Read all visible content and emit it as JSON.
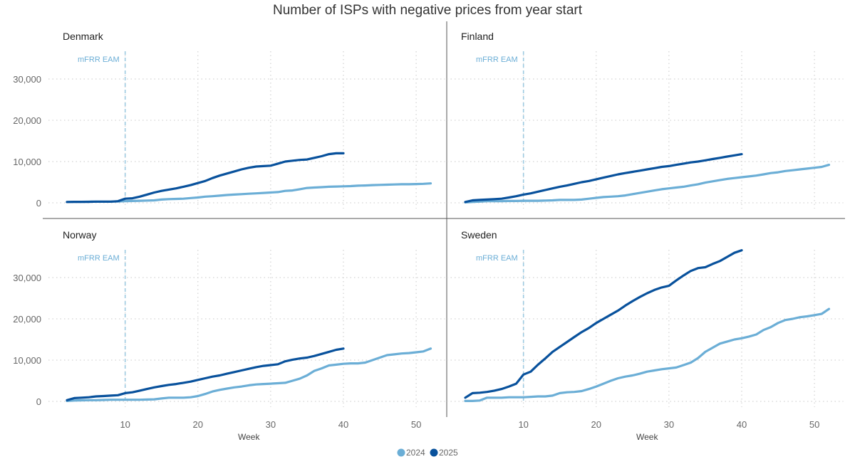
{
  "chart_data": {
    "type": "line",
    "title": "Number of ISPs with negative prices from year start",
    "xlabel": "Week",
    "ylabel": "",
    "xlim": [
      2,
      52
    ],
    "ylim": [
      0,
      37000
    ],
    "x_ticks": [
      10,
      20,
      30,
      40,
      50
    ],
    "y_ticks": [
      0,
      10000,
      20000,
      30000
    ],
    "y_tick_labels": [
      "0",
      "10,000",
      "20,000",
      "30,000"
    ],
    "grid": true,
    "legend": {
      "placement": "bottom-center",
      "entries": [
        {
          "name": "2024",
          "color": "#6BAED6"
        },
        {
          "name": "2025",
          "color": "#08519C"
        }
      ]
    },
    "annotation": {
      "label": "mFRR EAM",
      "x": 10,
      "style": "dashed-vertical-line"
    },
    "panels": [
      {
        "name": "Denmark",
        "series": [
          {
            "name": "2024",
            "x_start": 2,
            "values": [
              200,
              250,
              250,
              300,
              300,
              300,
              300,
              350,
              400,
              450,
              500,
              550,
              600,
              800,
              900,
              950,
              1000,
              1150,
              1300,
              1500,
              1600,
              1750,
              1900,
              2000,
              2100,
              2200,
              2300,
              2400,
              2500,
              2600,
              2900,
              3000,
              3300,
              3600,
              3700,
              3800,
              3900,
              3950,
              4000,
              4050,
              4150,
              4200,
              4300,
              4350,
              4400,
              4450,
              4500,
              4500,
              4550,
              4600,
              4700
            ]
          },
          {
            "name": "2025",
            "x_start": 2,
            "values": [
              200,
              250,
              250,
              250,
              300,
              300,
              300,
              400,
              1000,
              1100,
              1500,
              2000,
              2500,
              2900,
              3200,
              3500,
              3900,
              4300,
              4800,
              5300,
              6000,
              6600,
              7100,
              7600,
              8100,
              8500,
              8800,
              8900,
              9000,
              9500,
              10000,
              10200,
              10400,
              10500,
              10900,
              11300,
              11800,
              12000,
              12000
            ]
          }
        ]
      },
      {
        "name": "Finland",
        "series": [
          {
            "name": "2024",
            "x_start": 2,
            "values": [
              100,
              200,
              300,
              400,
              400,
              400,
              450,
              450,
              500,
              500,
              500,
              550,
              600,
              700,
              700,
              700,
              800,
              1000,
              1200,
              1400,
              1500,
              1600,
              1800,
              2100,
              2400,
              2700,
              3000,
              3300,
              3500,
              3700,
              3900,
              4200,
              4500,
              4900,
              5200,
              5500,
              5800,
              6000,
              6200,
              6400,
              6600,
              6900,
              7200,
              7400,
              7700,
              7900,
              8100,
              8300,
              8500,
              8700,
              9200
            ]
          },
          {
            "name": "2025",
            "x_start": 2,
            "values": [
              200,
              600,
              700,
              800,
              900,
              1000,
              1300,
              1600,
              2000,
              2300,
              2700,
              3100,
              3500,
              3900,
              4200,
              4600,
              5000,
              5300,
              5700,
              6100,
              6500,
              6900,
              7200,
              7500,
              7800,
              8100,
              8400,
              8700,
              8900,
              9200,
              9500,
              9800,
              10000,
              10300,
              10600,
              10900,
              11200,
              11500,
              11800
            ]
          }
        ]
      },
      {
        "name": "Norway",
        "series": [
          {
            "name": "2024",
            "x_start": 2,
            "values": [
              100,
              200,
              250,
              300,
              300,
              350,
              400,
              400,
              400,
              400,
              400,
              450,
              500,
              700,
              900,
              900,
              900,
              1000,
              1300,
              1800,
              2400,
              2800,
              3100,
              3400,
              3600,
              3900,
              4100,
              4200,
              4300,
              4400,
              4500,
              5000,
              5500,
              6300,
              7400,
              8000,
              8700,
              8900,
              9100,
              9200,
              9200,
              9400,
              10000,
              10600,
              11200,
              11400,
              11600,
              11700,
              11900,
              12100,
              12800
            ]
          },
          {
            "name": "2025",
            "x_start": 2,
            "values": [
              300,
              800,
              900,
              1000,
              1200,
              1300,
              1400,
              1500,
              2000,
              2200,
              2600,
              3000,
              3400,
              3700,
              4000,
              4200,
              4500,
              4800,
              5200,
              5600,
              6000,
              6300,
              6700,
              7100,
              7500,
              7900,
              8300,
              8600,
              8800,
              9000,
              9700,
              10100,
              10400,
              10600,
              11000,
              11500,
              12000,
              12500,
              12800
            ]
          }
        ]
      },
      {
        "name": "Sweden",
        "series": [
          {
            "name": "2024",
            "x_start": 2,
            "values": [
              100,
              100,
              200,
              900,
              900,
              900,
              1000,
              1000,
              1000,
              1100,
              1200,
              1200,
              1400,
              2000,
              2200,
              2300,
              2500,
              3000,
              3600,
              4300,
              5000,
              5600,
              6000,
              6300,
              6700,
              7200,
              7500,
              7800,
              8000,
              8200,
              8800,
              9400,
              10500,
              12000,
              13000,
              14000,
              14500,
              15000,
              15300,
              15700,
              16200,
              17300,
              18000,
              19000,
              19700,
              20000,
              20400,
              20600,
              20900,
              21200,
              22400
            ]
          },
          {
            "name": "2025",
            "x_start": 2,
            "values": [
              900,
              2000,
              2100,
              2300,
              2600,
              3000,
              3600,
              4300,
              6500,
              7200,
              8900,
              10400,
              12000,
              13200,
              14400,
              15600,
              16800,
              17800,
              19000,
              20000,
              21000,
              22000,
              23200,
              24300,
              25300,
              26200,
              27000,
              27600,
              28000,
              29300,
              30500,
              31600,
              32300,
              32500,
              33300,
              34000,
              35000,
              36000,
              36600
            ]
          }
        ]
      }
    ]
  }
}
